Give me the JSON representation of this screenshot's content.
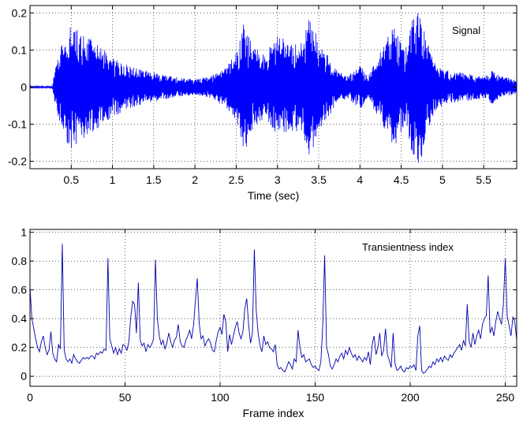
{
  "chart_data": [
    {
      "type": "line",
      "annotation": "Signal",
      "xlabel": "Time (sec)",
      "ylabel": "",
      "xlim": [
        0,
        5.9
      ],
      "ylim": [
        -0.22,
        0.22
      ],
      "xticks": [
        0.5,
        1,
        1.5,
        2,
        2.5,
        3,
        3.5,
        4,
        4.5,
        5,
        5.5
      ],
      "xtick_labels": [
        "0.5",
        "1",
        "1.5",
        "2",
        "2.5",
        "3",
        "3.5",
        "4",
        "4.5",
        "5",
        "5.5"
      ],
      "yticks": [
        -0.2,
        -0.1,
        0,
        0.1,
        0.2
      ],
      "ytick_labels": [
        "-0.2",
        "-0.1",
        "0",
        "0.1",
        "0.2"
      ],
      "grid": true,
      "line_color": "#0000ff",
      "envelope": {
        "t": [
          0.0,
          0.27,
          0.3,
          0.4,
          0.5,
          0.6,
          0.8,
          1.0,
          1.3,
          1.5,
          1.7,
          2.0,
          2.2,
          2.4,
          2.5,
          2.6,
          2.7,
          2.85,
          3.0,
          3.15,
          3.3,
          3.4,
          3.5,
          3.7,
          3.85,
          4.0,
          4.1,
          4.3,
          4.4,
          4.55,
          4.65,
          4.7,
          4.75,
          4.8,
          4.9,
          5.0,
          5.2,
          5.4,
          5.5,
          5.6,
          5.7,
          5.8,
          5.9
        ],
        "amp": [
          0.002,
          0.002,
          0.05,
          0.13,
          0.17,
          0.15,
          0.12,
          0.08,
          0.05,
          0.04,
          0.03,
          0.02,
          0.03,
          0.06,
          0.1,
          0.18,
          0.11,
          0.09,
          0.14,
          0.12,
          0.12,
          0.2,
          0.13,
          0.05,
          0.03,
          0.06,
          0.03,
          0.12,
          0.17,
          0.1,
          0.2,
          0.22,
          0.2,
          0.13,
          0.07,
          0.05,
          0.04,
          0.035,
          0.03,
          0.045,
          0.03,
          0.025,
          0.02
        ]
      }
    },
    {
      "type": "line",
      "annotation": "Transientness index",
      "xlabel": "Frame index",
      "ylabel": "",
      "xlim": [
        0,
        256
      ],
      "ylim": [
        -0.07,
        1.02
      ],
      "xticks": [
        0,
        50,
        100,
        150,
        200,
        250
      ],
      "xtick_labels": [
        "0",
        "50",
        "100",
        "150",
        "200",
        "250"
      ],
      "yticks": [
        0,
        0.2,
        0.4,
        0.6,
        0.8,
        1
      ],
      "ytick_labels": [
        "0",
        "0.2",
        "0.4",
        "0.6",
        "0.8",
        "1"
      ],
      "grid": true,
      "line_color": "#0000aa",
      "y": [
        0.62,
        0.4,
        0.33,
        0.26,
        0.2,
        0.17,
        0.24,
        0.28,
        0.2,
        0.15,
        0.18,
        0.31,
        0.16,
        0.12,
        0.1,
        0.22,
        0.19,
        0.92,
        0.18,
        0.12,
        0.1,
        0.12,
        0.09,
        0.15,
        0.12,
        0.1,
        0.09,
        0.11,
        0.13,
        0.12,
        0.13,
        0.12,
        0.14,
        0.14,
        0.12,
        0.16,
        0.15,
        0.17,
        0.16,
        0.19,
        0.18,
        0.82,
        0.26,
        0.21,
        0.16,
        0.2,
        0.15,
        0.19,
        0.16,
        0.22,
        0.21,
        0.18,
        0.24,
        0.41,
        0.52,
        0.5,
        0.3,
        0.65,
        0.25,
        0.21,
        0.23,
        0.17,
        0.22,
        0.2,
        0.22,
        0.26,
        0.81,
        0.4,
        0.28,
        0.22,
        0.25,
        0.19,
        0.23,
        0.3,
        0.24,
        0.2,
        0.25,
        0.27,
        0.36,
        0.24,
        0.21,
        0.2,
        0.25,
        0.28,
        0.32,
        0.26,
        0.35,
        0.52,
        0.68,
        0.37,
        0.26,
        0.28,
        0.21,
        0.24,
        0.26,
        0.23,
        0.18,
        0.17,
        0.25,
        0.31,
        0.34,
        0.29,
        0.43,
        0.38,
        0.17,
        0.29,
        0.22,
        0.28,
        0.34,
        0.38,
        0.3,
        0.26,
        0.31,
        0.47,
        0.54,
        0.36,
        0.23,
        0.3,
        0.88,
        0.46,
        0.3,
        0.21,
        0.17,
        0.28,
        0.22,
        0.24,
        0.2,
        0.19,
        0.17,
        0.22,
        0.08,
        0.05,
        0.06,
        0.04,
        0.03,
        0.06,
        0.1,
        0.08,
        0.05,
        0.12,
        0.1,
        0.32,
        0.2,
        0.13,
        0.15,
        0.1,
        0.11,
        0.12,
        0.08,
        0.06,
        0.07,
        0.05,
        0.04,
        0.1,
        0.35,
        0.84,
        0.2,
        0.15,
        0.07,
        0.05,
        0.08,
        0.12,
        0.1,
        0.14,
        0.16,
        0.12,
        0.18,
        0.15,
        0.2,
        0.16,
        0.13,
        0.15,
        0.11,
        0.14,
        0.12,
        0.1,
        0.13,
        0.11,
        0.17,
        0.08,
        0.22,
        0.28,
        0.15,
        0.2,
        0.3,
        0.14,
        0.18,
        0.33,
        0.15,
        0.11,
        0.06,
        0.3,
        0.09,
        0.04,
        0.05,
        0.07,
        0.04,
        0.03,
        0.06,
        0.05,
        0.07,
        0.06,
        0.08,
        0.04,
        0.28,
        0.35,
        0.04,
        0.02,
        0.03,
        0.05,
        0.07,
        0.06,
        0.1,
        0.08,
        0.12,
        0.1,
        0.13,
        0.1,
        0.14,
        0.12,
        0.11,
        0.15,
        0.13,
        0.16,
        0.18,
        0.2,
        0.22,
        0.18,
        0.25,
        0.21,
        0.5,
        0.24,
        0.2,
        0.3,
        0.22,
        0.28,
        0.32,
        0.26,
        0.36,
        0.4,
        0.42,
        0.7,
        0.3,
        0.34,
        0.28,
        0.38,
        0.45,
        0.4,
        0.36,
        0.5,
        0.82,
        0.42,
        0.35,
        0.28,
        0.41,
        0.38,
        0.25,
        0.3,
        0.24,
        0.33,
        0.26,
        0.23
      ]
    }
  ]
}
